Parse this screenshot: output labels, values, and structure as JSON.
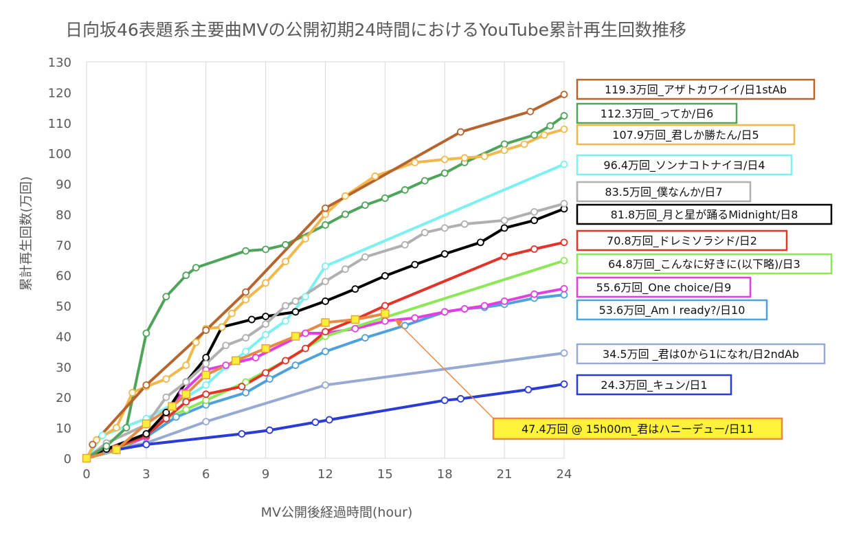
{
  "chart_data": {
    "type": "line",
    "title": "日向坂46表題系主要曲MVの公開初期24時間におけるYouTube累計再生回数推移",
    "xlabel": "MV公開後経過時間(hour)",
    "ylabel": "累計再生回数(万回)",
    "xlim": [
      0,
      24
    ],
    "ylim": [
      0,
      130
    ],
    "xticks": [
      0,
      3,
      6,
      9,
      12,
      15,
      18,
      21,
      24
    ],
    "yticks": [
      0,
      10,
      20,
      30,
      40,
      50,
      60,
      70,
      80,
      90,
      100,
      110,
      120,
      130
    ],
    "grid": "vertical",
    "series": [
      {
        "label": "119.3万回_アザトカワイイ/日1stAb",
        "color": "#b5652d",
        "marker": "circle",
        "points": [
          [
            0.3,
            4.5
          ],
          [
            3,
            24
          ],
          [
            6,
            42
          ],
          [
            8,
            54.5
          ],
          [
            12,
            82
          ],
          [
            18.8,
            107
          ],
          [
            22.3,
            113.7
          ],
          [
            24,
            119.3
          ]
        ]
      },
      {
        "label": "112.3万回_ってか/日6",
        "color": "#4ea55a",
        "marker": "circle",
        "points": [
          [
            0,
            0
          ],
          [
            1,
            4
          ],
          [
            2,
            10
          ],
          [
            3,
            41
          ],
          [
            4,
            53
          ],
          [
            5,
            60
          ],
          [
            5.5,
            62.5
          ],
          [
            8,
            68
          ],
          [
            9,
            68.5
          ],
          [
            10,
            70
          ],
          [
            12,
            76.5
          ],
          [
            13,
            80
          ],
          [
            14,
            83
          ],
          [
            15,
            85.3
          ],
          [
            16,
            88
          ],
          [
            17,
            91
          ],
          [
            18,
            93.5
          ],
          [
            19,
            97
          ],
          [
            21,
            103
          ],
          [
            22.5,
            106
          ],
          [
            23.3,
            109
          ],
          [
            24,
            112.3
          ]
        ]
      },
      {
        "label": "107.9万回_君しか勝たん/日5",
        "color": "#f2b84b",
        "marker": "circle",
        "points": [
          [
            0,
            0
          ],
          [
            0.5,
            6
          ],
          [
            1.5,
            10
          ],
          [
            2.3,
            21.5
          ],
          [
            3,
            23.5
          ],
          [
            4,
            26
          ],
          [
            5,
            30.5
          ],
          [
            5.5,
            38
          ],
          [
            6,
            42.5
          ],
          [
            6.8,
            43
          ],
          [
            7.3,
            47.5
          ],
          [
            8,
            52
          ],
          [
            9,
            57.5
          ],
          [
            10,
            64.5
          ],
          [
            11,
            72
          ],
          [
            12,
            80
          ],
          [
            13,
            86
          ],
          [
            14.5,
            92.5
          ],
          [
            16.5,
            97
          ],
          [
            18,
            98
          ],
          [
            19,
            98.5
          ],
          [
            20,
            99
          ],
          [
            21,
            101
          ],
          [
            22,
            103
          ],
          [
            23,
            106
          ],
          [
            24,
            107.9
          ]
        ]
      },
      {
        "label": "96.4万回_ソンナコトナイヨ/日4",
        "color": "#7df1f2",
        "marker": "circle",
        "points": [
          [
            0,
            0
          ],
          [
            0.8,
            7.5
          ],
          [
            3,
            13
          ],
          [
            5,
            20
          ],
          [
            6,
            24
          ],
          [
            7,
            30
          ],
          [
            8,
            35
          ],
          [
            9,
            40.5
          ],
          [
            10,
            45
          ],
          [
            11,
            53
          ],
          [
            12,
            63
          ],
          [
            24,
            96.4
          ]
        ]
      },
      {
        "label": "83.5万回_僕なんか/日7",
        "color": "#b0b0b0",
        "marker": "circle",
        "points": [
          [
            0,
            0
          ],
          [
            1,
            5
          ],
          [
            3,
            11
          ],
          [
            4,
            20
          ],
          [
            5,
            25
          ],
          [
            6,
            31
          ],
          [
            7,
            37
          ],
          [
            8,
            39.5
          ],
          [
            9,
            44
          ],
          [
            10,
            50
          ],
          [
            10.5,
            51.5
          ],
          [
            12,
            58
          ],
          [
            13,
            62
          ],
          [
            14,
            66
          ],
          [
            16,
            70
          ],
          [
            17,
            74
          ],
          [
            18,
            75.5
          ],
          [
            19,
            76.8
          ],
          [
            21,
            78
          ],
          [
            22.5,
            80.8
          ],
          [
            24,
            83.5
          ]
        ]
      },
      {
        "label": "81.8万回_月と星が踊るMidnight/日8",
        "color": "#000000",
        "marker": "circle",
        "points": [
          [
            0,
            0
          ],
          [
            1,
            3
          ],
          [
            3,
            8
          ],
          [
            4,
            15
          ],
          [
            5,
            25
          ],
          [
            6,
            33
          ],
          [
            6.8,
            43
          ],
          [
            8.3,
            45.5
          ],
          [
            9,
            46.5
          ],
          [
            10.5,
            48
          ],
          [
            12,
            51.5
          ],
          [
            13.5,
            55.5
          ],
          [
            15,
            59.8
          ],
          [
            16.5,
            63.5
          ],
          [
            18,
            67
          ],
          [
            19.8,
            70.8
          ],
          [
            21,
            75.5
          ],
          [
            22.5,
            78
          ],
          [
            24,
            81.8
          ]
        ]
      },
      {
        "label": "70.8万回_ドレミソラシド/日2",
        "color": "#e3342a",
        "marker": "circle",
        "points": [
          [
            0,
            0
          ],
          [
            1.5,
            3.5
          ],
          [
            3,
            7.5
          ],
          [
            4,
            13
          ],
          [
            5,
            18.5
          ],
          [
            6,
            21
          ],
          [
            7.8,
            23.5
          ],
          [
            9,
            28
          ],
          [
            10,
            32
          ],
          [
            11,
            36
          ],
          [
            12,
            41.5
          ],
          [
            13.5,
            45.5
          ],
          [
            15,
            50
          ],
          [
            21,
            66.2
          ],
          [
            22.5,
            68.6
          ],
          [
            24,
            70.8
          ]
        ]
      },
      {
        "label": "64.8万回_こんなに好きに(以下略)/日3",
        "color": "#8de857",
        "marker": "circle",
        "points": [
          [
            0,
            0
          ],
          [
            1.5,
            2.5
          ],
          [
            3,
            8
          ],
          [
            4,
            13
          ],
          [
            5,
            16
          ],
          [
            6,
            19
          ],
          [
            8,
            25
          ],
          [
            10,
            32
          ],
          [
            12,
            40
          ],
          [
            24,
            64.8
          ]
        ]
      },
      {
        "label": "55.6万回_One choice/日9",
        "color": "#e23fe0",
        "marker": "circle",
        "points": [
          [
            0,
            0
          ],
          [
            1.5,
            3
          ],
          [
            3,
            7
          ],
          [
            4,
            15
          ],
          [
            4.8,
            21.5
          ],
          [
            6,
            29
          ],
          [
            7,
            30.5
          ],
          [
            8.5,
            33
          ],
          [
            11,
            41
          ],
          [
            12,
            41
          ],
          [
            13.5,
            42.5
          ],
          [
            15,
            45
          ],
          [
            16.5,
            46
          ],
          [
            18,
            48
          ],
          [
            19,
            49
          ],
          [
            20,
            50
          ],
          [
            21,
            51.5
          ],
          [
            22.5,
            53.8
          ],
          [
            24,
            55.6
          ]
        ]
      },
      {
        "label": "53.6万回_Am I ready?/日10",
        "color": "#4fa1db",
        "marker": "circle",
        "points": [
          [
            0,
            0
          ],
          [
            1.5,
            3
          ],
          [
            3,
            7
          ],
          [
            4.5,
            13.5
          ],
          [
            6,
            17.5
          ],
          [
            8,
            21.5
          ],
          [
            9.2,
            26
          ],
          [
            10.5,
            30.5
          ],
          [
            12,
            35
          ],
          [
            14,
            39.5
          ],
          [
            16,
            43.5
          ],
          [
            18,
            48
          ],
          [
            19,
            49
          ],
          [
            20,
            49.5
          ],
          [
            21,
            50.5
          ],
          [
            22.5,
            52.5
          ],
          [
            24,
            53.6
          ]
        ]
      },
      {
        "label": "34.5万回 _君は0から1になれ/日2ndAb",
        "color": "#97aad4",
        "marker": "circle",
        "points": [
          [
            0,
            0
          ],
          [
            1,
            2.5
          ],
          [
            3,
            5
          ],
          [
            6,
            12
          ],
          [
            12,
            24
          ],
          [
            24,
            34.5
          ]
        ]
      },
      {
        "label": "24.3万回_キュン/日1",
        "color": "#2a3bd6",
        "marker": "circle",
        "points": [
          [
            0,
            0
          ],
          [
            1.5,
            2.8
          ],
          [
            3,
            4.5
          ],
          [
            7.8,
            8
          ],
          [
            9.2,
            9.2
          ],
          [
            11.5,
            11.8
          ],
          [
            12.2,
            12.6
          ],
          [
            18,
            19
          ],
          [
            18.8,
            19.5
          ],
          [
            22.2,
            22.5
          ],
          [
            24,
            24.3
          ]
        ]
      },
      {
        "label": "47.4万回 @ 15h00m_君はハニーデュー/日11",
        "color": "#e88a42",
        "marker": "square",
        "points": [
          [
            0,
            0
          ],
          [
            1.5,
            2.8
          ],
          [
            3,
            11.3
          ],
          [
            4.3,
            17
          ],
          [
            5,
            21
          ],
          [
            6,
            27.3
          ],
          [
            7.5,
            32
          ],
          [
            9,
            36
          ],
          [
            10.5,
            40
          ],
          [
            12,
            44.5
          ],
          [
            13.5,
            45.5
          ],
          [
            15,
            47.4
          ]
        ]
      }
    ]
  }
}
